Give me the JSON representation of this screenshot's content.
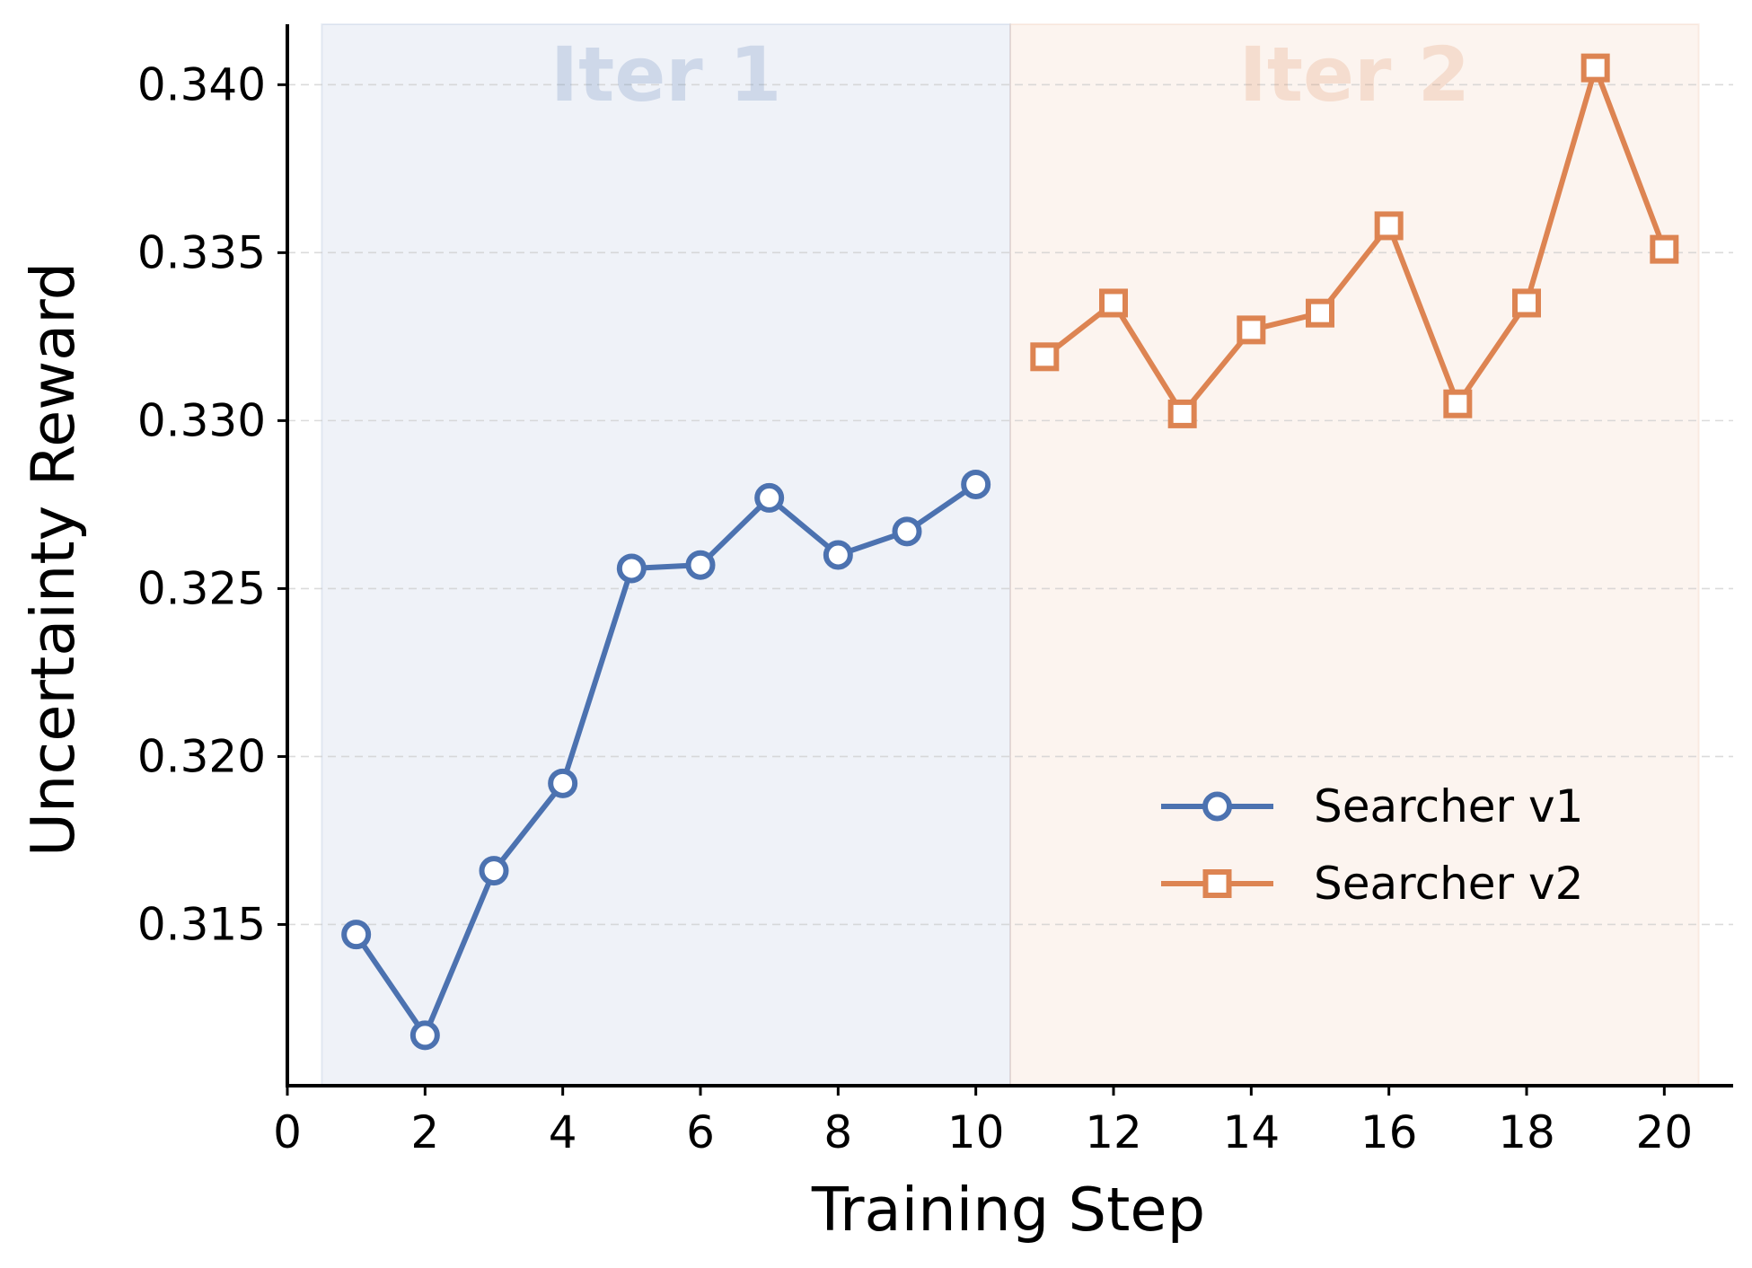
{
  "chart_data": {
    "type": "line",
    "xlabel": "Training Step",
    "ylabel": "Uncertainty Reward",
    "xlim": [
      0,
      21
    ],
    "ylim": [
      0.3102,
      0.3418
    ],
    "xticks": [
      "0",
      "2",
      "4",
      "6",
      "8",
      "10",
      "12",
      "14",
      "16",
      "18",
      "20"
    ],
    "yticks": [
      "0.315",
      "0.320",
      "0.325",
      "0.330",
      "0.335",
      "0.340"
    ],
    "grid": "horizontal dashed",
    "legend_position": "lower-right",
    "regions": [
      {
        "label": "Iter 1",
        "x_range": [
          0.5,
          10.5
        ],
        "color": "#4c72b0"
      },
      {
        "label": "Iter 2",
        "x_range": [
          10.5,
          20.5
        ],
        "color": "#dd8452"
      }
    ],
    "series": [
      {
        "name": "Searcher v1",
        "color": "#4c72b0",
        "marker": "circle",
        "x": [
          1,
          2,
          3,
          4,
          5,
          6,
          7,
          8,
          9,
          10
        ],
        "y": [
          0.3147,
          0.3117,
          0.3166,
          0.3192,
          0.3256,
          0.3257,
          0.3277,
          0.326,
          0.3267,
          0.3281
        ]
      },
      {
        "name": "Searcher v2",
        "color": "#dd8452",
        "marker": "square",
        "x": [
          11,
          12,
          13,
          14,
          15,
          16,
          17,
          18,
          19,
          20
        ],
        "y": [
          0.3319,
          0.3335,
          0.3302,
          0.3327,
          0.3332,
          0.3358,
          0.3305,
          0.3335,
          0.3405,
          0.3351
        ]
      }
    ]
  }
}
